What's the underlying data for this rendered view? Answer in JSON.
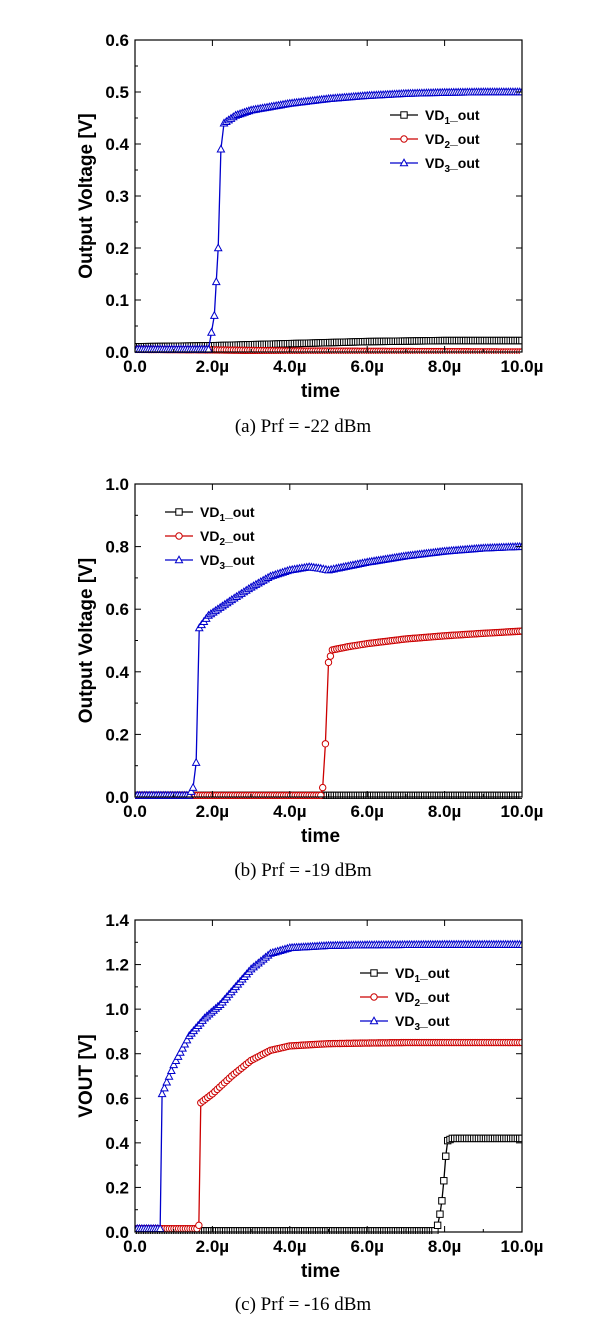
{
  "chart_data": [
    {
      "type": "line",
      "caption": "(a) Prf = -22 dBm",
      "xlabel": "time",
      "ylabel": "Output Voltage [V]",
      "xlim": [
        0,
        10
      ],
      "ylim": [
        0,
        0.6
      ],
      "x_ticks": [
        "0.0",
        "2.0µ",
        "4.0µ",
        "6.0µ",
        "8.0µ",
        "10.0µ"
      ],
      "y_ticks": [
        "0.0",
        "0.1",
        "0.2",
        "0.3",
        "0.4",
        "0.5",
        "0.6"
      ],
      "legend_position": "right",
      "series": [
        {
          "name": "VD1_out",
          "name_base": "VD",
          "name_sub": "1",
          "name_tail": "_out",
          "color": "#000000",
          "marker": "square",
          "points": [
            [
              0,
              0.01
            ],
            [
              2,
              0.012
            ],
            [
              4,
              0.016
            ],
            [
              6,
              0.02
            ],
            [
              8,
              0.022
            ],
            [
              10,
              0.022
            ]
          ]
        },
        {
          "name": "VD2_out",
          "name_base": "VD",
          "name_sub": "2",
          "name_tail": "_out",
          "color": "#cc0000",
          "marker": "circle",
          "points": [
            [
              0,
              0.005
            ],
            [
              2,
              0.004
            ],
            [
              4,
              0.002
            ],
            [
              10,
              0.0
            ]
          ]
        },
        {
          "name": "VD3_out",
          "name_base": "VD",
          "name_sub": "3",
          "name_tail": "_out",
          "color": "#0000cc",
          "marker": "triangle",
          "points": [
            [
              0,
              0.005
            ],
            [
              1.9,
              0.005
            ],
            [
              2.05,
              0.07
            ],
            [
              2.15,
              0.2
            ],
            [
              2.22,
              0.39
            ],
            [
              2.3,
              0.44
            ],
            [
              2.6,
              0.455
            ],
            [
              3,
              0.465
            ],
            [
              4,
              0.478
            ],
            [
              5,
              0.487
            ],
            [
              6,
              0.493
            ],
            [
              7,
              0.497
            ],
            [
              8,
              0.499
            ],
            [
              9,
              0.5
            ],
            [
              10,
              0.5
            ]
          ]
        }
      ]
    },
    {
      "type": "line",
      "caption": "(b) Prf = -19 dBm",
      "xlabel": "time",
      "ylabel": "Output Voltage [V]",
      "xlim": [
        0,
        10
      ],
      "ylim": [
        0,
        1.0
      ],
      "x_ticks": [
        "0.0",
        "2.0µ",
        "4.0µ",
        "6.0µ",
        "8.0µ",
        "10.0µ"
      ],
      "y_ticks": [
        "0.0",
        "0.2",
        "0.4",
        "0.6",
        "0.8",
        "1.0"
      ],
      "legend_position": "top-left",
      "series": [
        {
          "name": "VD1_out",
          "name_base": "VD",
          "name_sub": "1",
          "name_tail": "_out",
          "color": "#000000",
          "marker": "square",
          "points": [
            [
              0,
              0.005
            ],
            [
              10,
              0.005
            ]
          ]
        },
        {
          "name": "VD2_out",
          "name_base": "VD",
          "name_sub": "2",
          "name_tail": "_out",
          "color": "#cc0000",
          "marker": "circle",
          "points": [
            [
              0,
              0.005
            ],
            [
              4.8,
              0.005
            ],
            [
              4.85,
              0.03
            ],
            [
              4.92,
              0.17
            ],
            [
              5.0,
              0.43
            ],
            [
              5.1,
              0.47
            ],
            [
              5.5,
              0.48
            ],
            [
              6,
              0.49
            ],
            [
              7,
              0.505
            ],
            [
              8,
              0.515
            ],
            [
              9,
              0.523
            ],
            [
              10,
              0.53
            ]
          ]
        },
        {
          "name": "VD3_out",
          "name_base": "VD",
          "name_sub": "3",
          "name_tail": "_out",
          "color": "#0000cc",
          "marker": "triangle",
          "points": [
            [
              0,
              0.005
            ],
            [
              1.4,
              0.005
            ],
            [
              1.5,
              0.03
            ],
            [
              1.58,
              0.11
            ],
            [
              1.66,
              0.54
            ],
            [
              1.9,
              0.58
            ],
            [
              2.5,
              0.63
            ],
            [
              3,
              0.67
            ],
            [
              3.5,
              0.705
            ],
            [
              4,
              0.725
            ],
            [
              4.5,
              0.735
            ],
            [
              4.8,
              0.73
            ],
            [
              5,
              0.725
            ],
            [
              5.2,
              0.73
            ],
            [
              6,
              0.75
            ],
            [
              7,
              0.77
            ],
            [
              8,
              0.785
            ],
            [
              9,
              0.795
            ],
            [
              10,
              0.8
            ]
          ]
        }
      ]
    },
    {
      "type": "line",
      "caption": "(c) Prf = -16 dBm",
      "xlabel": "time",
      "ylabel": "VOUT [V]",
      "xlim": [
        0,
        10
      ],
      "ylim": [
        0,
        1.4
      ],
      "x_ticks": [
        "0.0",
        "2.0µ",
        "4.0µ",
        "6.0µ",
        "8.0µ",
        "10.0µ"
      ],
      "y_ticks": [
        "0.0",
        "0.2",
        "0.4",
        "0.6",
        "0.8",
        "1.0",
        "1.2",
        "1.4"
      ],
      "legend_position": "top-right",
      "series": [
        {
          "name": "VD1_out",
          "name_base": "VD",
          "name_sub": "1",
          "name_tail": "_out",
          "color": "#000000",
          "marker": "square",
          "points": [
            [
              0,
              0.005
            ],
            [
              7.75,
              0.005
            ],
            [
              7.82,
              0.03
            ],
            [
              7.88,
              0.08
            ],
            [
              7.93,
              0.14
            ],
            [
              7.98,
              0.23
            ],
            [
              8.03,
              0.34
            ],
            [
              8.08,
              0.41
            ],
            [
              8.2,
              0.42
            ],
            [
              9,
              0.42
            ],
            [
              10,
              0.42
            ]
          ]
        },
        {
          "name": "VD2_out",
          "name_base": "VD",
          "name_sub": "2",
          "name_tail": "_out",
          "color": "#cc0000",
          "marker": "circle",
          "points": [
            [
              0,
              0.015
            ],
            [
              1.6,
              0.015
            ],
            [
              1.65,
              0.03
            ],
            [
              1.7,
              0.58
            ],
            [
              2,
              0.62
            ],
            [
              2.5,
              0.7
            ],
            [
              3,
              0.77
            ],
            [
              3.5,
              0.815
            ],
            [
              4,
              0.835
            ],
            [
              5,
              0.845
            ],
            [
              6,
              0.848
            ],
            [
              7,
              0.85
            ],
            [
              8,
              0.85
            ],
            [
              10,
              0.85
            ]
          ]
        },
        {
          "name": "VD3_out",
          "name_base": "VD",
          "name_sub": "3",
          "name_tail": "_out",
          "color": "#0000cc",
          "marker": "triangle",
          "points": [
            [
              0,
              0.015
            ],
            [
              0.65,
              0.015
            ],
            [
              0.7,
              0.62
            ],
            [
              1.0,
              0.75
            ],
            [
              1.4,
              0.88
            ],
            [
              1.8,
              0.96
            ],
            [
              2.2,
              1.02
            ],
            [
              2.6,
              1.1
            ],
            [
              3,
              1.18
            ],
            [
              3.5,
              1.25
            ],
            [
              4,
              1.275
            ],
            [
              5,
              1.285
            ],
            [
              6,
              1.288
            ],
            [
              8,
              1.29
            ],
            [
              10,
              1.29
            ]
          ]
        }
      ]
    }
  ]
}
